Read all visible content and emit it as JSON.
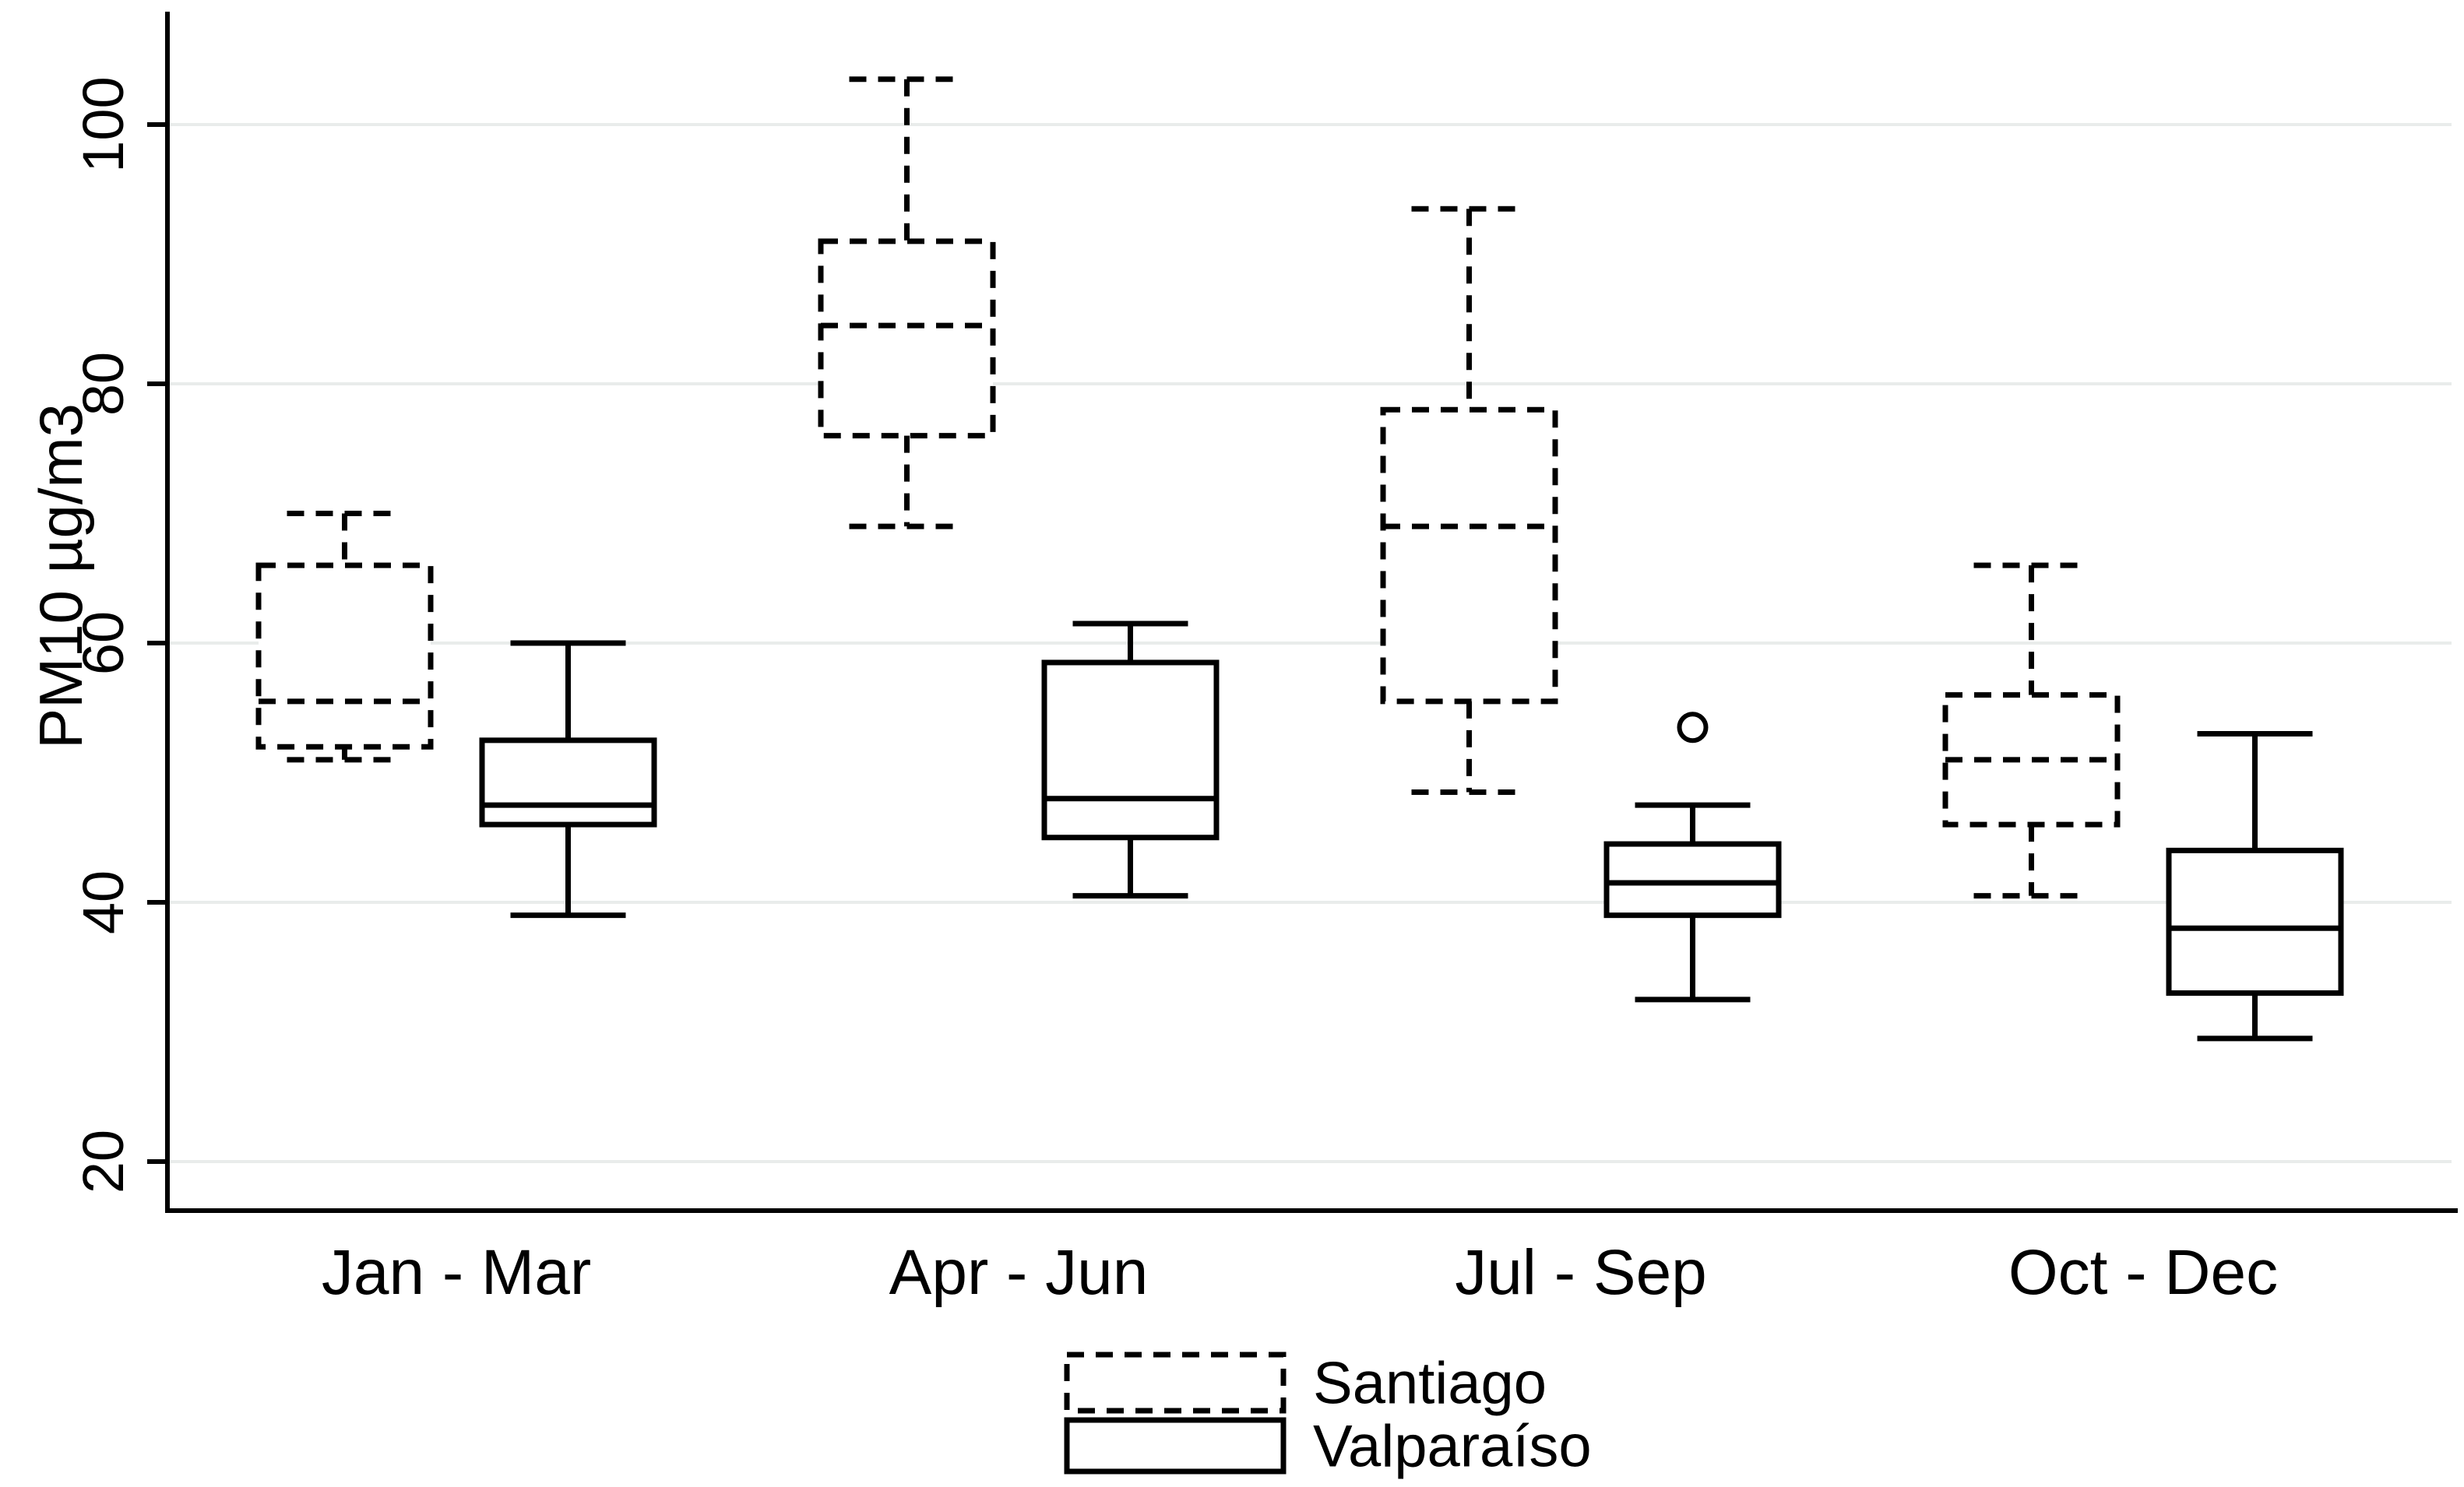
{
  "chart_data": {
    "type": "boxplot",
    "title": "",
    "xlabel": "",
    "ylabel": "PM10 µg/m3",
    "yticks": [
      20,
      40,
      60,
      80,
      100
    ],
    "ylim": [
      16,
      108.5
    ],
    "grid": true,
    "categories": [
      "Jan - Mar",
      "Apr - Jun",
      "Jul - Sep",
      "Oct - Dec"
    ],
    "legend_position": "bottom-center",
    "series": [
      {
        "name": "Santiago",
        "style": "dashed",
        "boxes": [
          {
            "whislo": 51,
            "q1": 52,
            "med": 55.5,
            "q3": 66,
            "whishi": 70,
            "outliers": []
          },
          {
            "whislo": 69,
            "q1": 76,
            "med": 84.5,
            "q3": 91,
            "whishi": 103.5,
            "outliers": []
          },
          {
            "whislo": 48.5,
            "q1": 55.5,
            "med": 69,
            "q3": 78,
            "whishi": 93.5,
            "outliers": []
          },
          {
            "whislo": 40.5,
            "q1": 46,
            "med": 51,
            "q3": 56,
            "whishi": 66,
            "outliers": []
          }
        ]
      },
      {
        "name": "Valparaíso",
        "style": "solid",
        "boxes": [
          {
            "whislo": 39,
            "q1": 46,
            "med": 47.5,
            "q3": 52.5,
            "whishi": 60,
            "outliers": []
          },
          {
            "whislo": 40.5,
            "q1": 45,
            "med": 48,
            "q3": 58.5,
            "whishi": 61.5,
            "outliers": []
          },
          {
            "whislo": 32.5,
            "q1": 39,
            "med": 41.5,
            "q3": 44.5,
            "whishi": 47.5,
            "outliers": [
              53.5
            ]
          },
          {
            "whislo": 29.5,
            "q1": 33,
            "med": 38,
            "q3": 44,
            "whishi": 53,
            "outliers": []
          }
        ]
      }
    ],
    "legend": [
      "Santiago",
      "Valparaíso"
    ],
    "colors": {
      "stroke": "#000000",
      "grid": "#e9eceb",
      "background": "#ffffff",
      "text": "#000000"
    }
  }
}
